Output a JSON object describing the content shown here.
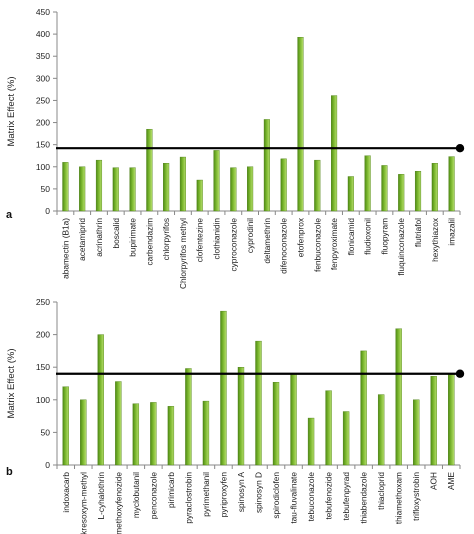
{
  "chart_data": [
    {
      "type": "bar",
      "panel_label": "a",
      "ylabel": "Matrix Effect (%)",
      "ylim": [
        0,
        450
      ],
      "yticks": [
        0,
        50,
        100,
        150,
        200,
        250,
        300,
        350,
        400,
        450
      ],
      "grid": false,
      "reference_line": 142,
      "bar_color": "#7cb82f",
      "categories": [
        "abamectin (B1a)",
        "acetamiprid",
        "acrinathrin",
        "boscalid",
        "bupirimate",
        "carbendazim",
        "chlorpyrifos",
        "Chlorpyrifos methyl",
        "clofentezine",
        "clothianidin",
        "cyproconazole",
        "cyprodinil",
        "deltamethrin",
        "difenoconazole",
        "etofenprox",
        "fenbuconazole",
        "fenpyroximate",
        "flonicamid",
        "fludioxonil",
        "fluopyram",
        "fluquinconazole",
        "flutriafol",
        "hexythiazox",
        "imazalil"
      ],
      "values": [
        110,
        100,
        115,
        98,
        98,
        185,
        108,
        122,
        70,
        137,
        98,
        100,
        207,
        118,
        393,
        115,
        261,
        78,
        125,
        103,
        83,
        90,
        108,
        123
      ]
    },
    {
      "type": "bar",
      "panel_label": "b",
      "ylabel": "Matrix Effect (%)",
      "ylim": [
        0,
        250
      ],
      "yticks": [
        0,
        50,
        100,
        150,
        200,
        250
      ],
      "grid": false,
      "reference_line": 140,
      "bar_color": "#7cb82f",
      "categories": [
        "indoxacarb",
        "kresoxym-methyl",
        "L-cyhalothrin",
        "methoxyfenozide",
        "myclobutanil",
        "penconazole",
        "pirimicarb",
        "pyraclostrobin",
        "pyrimethanil",
        "pyriproxyfen",
        "spinosyn A",
        "spinosyn D",
        "spirodiclofen",
        "tau-fluvalinate",
        "tebuconazole",
        "tebufenozide",
        "tebufenpyrad",
        "thiabendazole",
        "thiacloprid",
        "thiamethoxam",
        "trifloxystrobin",
        "AOH",
        "AME"
      ],
      "values": [
        120,
        100,
        200,
        128,
        94,
        96,
        90,
        148,
        98,
        236,
        150,
        190,
        127,
        140,
        72,
        114,
        82,
        175,
        108,
        209,
        100,
        136,
        139
      ]
    }
  ]
}
